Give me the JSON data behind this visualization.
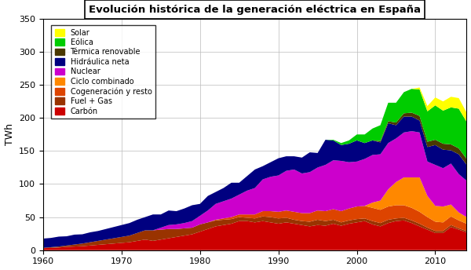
{
  "title": "Evolución histórica de la generación eléctrica en España",
  "ylabel": "TWh",
  "years": [
    1960,
    1961,
    1962,
    1963,
    1964,
    1965,
    1966,
    1967,
    1968,
    1969,
    1970,
    1971,
    1972,
    1973,
    1974,
    1975,
    1976,
    1977,
    1978,
    1979,
    1980,
    1981,
    1982,
    1983,
    1984,
    1985,
    1986,
    1987,
    1988,
    1989,
    1990,
    1991,
    1992,
    1993,
    1994,
    1995,
    1996,
    1997,
    1998,
    1999,
    2000,
    2001,
    2002,
    2003,
    2004,
    2005,
    2006,
    2007,
    2008,
    2009,
    2010,
    2011,
    2012,
    2013,
    2014
  ],
  "series": {
    "Carbon": [
      3,
      3.5,
      4,
      5,
      5.5,
      6,
      7,
      8,
      9,
      10,
      11,
      12,
      14,
      16,
      14,
      16,
      18,
      20,
      22,
      24,
      28,
      32,
      36,
      38,
      40,
      44,
      44,
      42,
      44,
      42,
      40,
      42,
      40,
      38,
      36,
      38,
      37,
      40,
      37,
      40,
      42,
      44,
      39,
      36,
      41,
      44,
      45,
      41,
      36,
      31,
      26,
      26,
      35,
      31,
      27
    ],
    "Fuel + Gas": [
      0.5,
      1,
      1.5,
      2,
      3,
      4,
      5,
      6,
      7,
      8,
      9,
      10,
      12,
      14,
      16,
      15,
      14,
      12,
      11,
      10,
      11,
      10,
      9,
      8,
      7,
      6,
      5,
      6,
      7,
      8,
      8,
      7,
      6,
      6,
      7,
      8,
      7,
      6,
      5,
      5,
      5,
      4,
      5,
      5,
      5,
      4,
      4,
      4,
      4,
      3,
      3,
      3,
      3,
      2,
      2
    ],
    "Cogeneración y resto": [
      0,
      0,
      0,
      0,
      0,
      0,
      0,
      0,
      0,
      0,
      0,
      0,
      0,
      0,
      0,
      0,
      0,
      0,
      0,
      0,
      0,
      0,
      1,
      2,
      3,
      4,
      5,
      6,
      8,
      9,
      10,
      11,
      12,
      12,
      13,
      14,
      15,
      16,
      17,
      18,
      19,
      19,
      20,
      20,
      20,
      20,
      19,
      19,
      18,
      16,
      14,
      13,
      13,
      12,
      11
    ],
    "Ciclo combinado": [
      0,
      0,
      0,
      0,
      0,
      0,
      0,
      0,
      0,
      0,
      0,
      0,
      0,
      0,
      0,
      0,
      0,
      0,
      0,
      0,
      0,
      0,
      0,
      0,
      0,
      0,
      0,
      0,
      0,
      0,
      0,
      0,
      0,
      0,
      0,
      0,
      0,
      0,
      0,
      0,
      0,
      0,
      8,
      14,
      26,
      35,
      42,
      46,
      52,
      32,
      24,
      24,
      18,
      12,
      10
    ],
    "Nuclear": [
      0,
      0,
      0,
      0,
      0,
      0,
      0,
      0,
      0,
      0,
      0,
      0,
      0,
      0,
      0,
      3,
      6,
      7,
      8,
      10,
      13,
      18,
      24,
      26,
      28,
      30,
      36,
      40,
      48,
      52,
      55,
      60,
      64,
      60,
      62,
      65,
      70,
      74,
      76,
      70,
      68,
      71,
      72,
      70,
      70,
      66,
      68,
      70,
      68,
      52,
      62,
      58,
      62,
      58,
      55
    ],
    "Hidráulica neta": [
      14,
      14,
      15,
      14,
      15,
      14,
      15,
      15,
      16,
      17,
      18,
      19,
      20,
      20,
      24,
      20,
      22,
      20,
      22,
      24,
      18,
      22,
      18,
      20,
      24,
      18,
      22,
      28,
      20,
      22,
      26,
      22,
      20,
      24,
      30,
      22,
      38,
      30,
      24,
      28,
      32,
      24,
      22,
      18,
      30,
      20,
      24,
      22,
      18,
      22,
      30,
      28,
      20,
      30,
      24
    ],
    "Térmica renovable": [
      0,
      0,
      0,
      0,
      0,
      0,
      0,
      0,
      0,
      0,
      0,
      0,
      0,
      0,
      0,
      0,
      0,
      0,
      0,
      0,
      0,
      0,
      0,
      0,
      0,
      0,
      0,
      0,
      0,
      0,
      0,
      0,
      0,
      0,
      0,
      0,
      0,
      0,
      0,
      0,
      0,
      0,
      0,
      2,
      3,
      4,
      5,
      6,
      7,
      8,
      8,
      9,
      9,
      9,
      9
    ],
    "Eólica": [
      0,
      0,
      0,
      0,
      0,
      0,
      0,
      0,
      0,
      0,
      0,
      0,
      0,
      0,
      0,
      0,
      0,
      0,
      0,
      0,
      0,
      0,
      0,
      0,
      0,
      0,
      0,
      0,
      0,
      0,
      0,
      0,
      0,
      0,
      0,
      0,
      0,
      1,
      3,
      5,
      9,
      13,
      18,
      24,
      28,
      30,
      32,
      36,
      40,
      46,
      52,
      50,
      56,
      60,
      56
    ],
    "Solar": [
      0,
      0,
      0,
      0,
      0,
      0,
      0,
      0,
      0,
      0,
      0,
      0,
      0,
      0,
      0,
      0,
      0,
      0,
      0,
      0,
      0,
      0,
      0,
      0,
      0,
      0,
      0,
      0,
      0,
      0,
      0,
      0,
      0,
      0,
      0,
      0,
      0,
      0,
      0,
      0,
      0,
      0,
      0,
      0,
      0,
      0,
      0,
      0,
      3,
      8,
      12,
      14,
      16,
      16,
      14
    ]
  },
  "colors": {
    "Carbon": "#cc0000",
    "Fuel + Gas": "#993300",
    "Cogeneración y resto": "#dd4400",
    "Ciclo combinado": "#ff8800",
    "Nuclear": "#cc00cc",
    "Hidráulica neta": "#000080",
    "Térmica renovable": "#4a3800",
    "Eólica": "#00cc00",
    "Solar": "#ffff00"
  },
  "ylim": [
    0,
    350
  ],
  "xlim": [
    1960,
    2014
  ],
  "yticks": [
    0,
    50,
    100,
    150,
    200,
    250,
    300,
    350
  ],
  "xticks": [
    1960,
    1970,
    1980,
    1990,
    2000,
    2010
  ]
}
